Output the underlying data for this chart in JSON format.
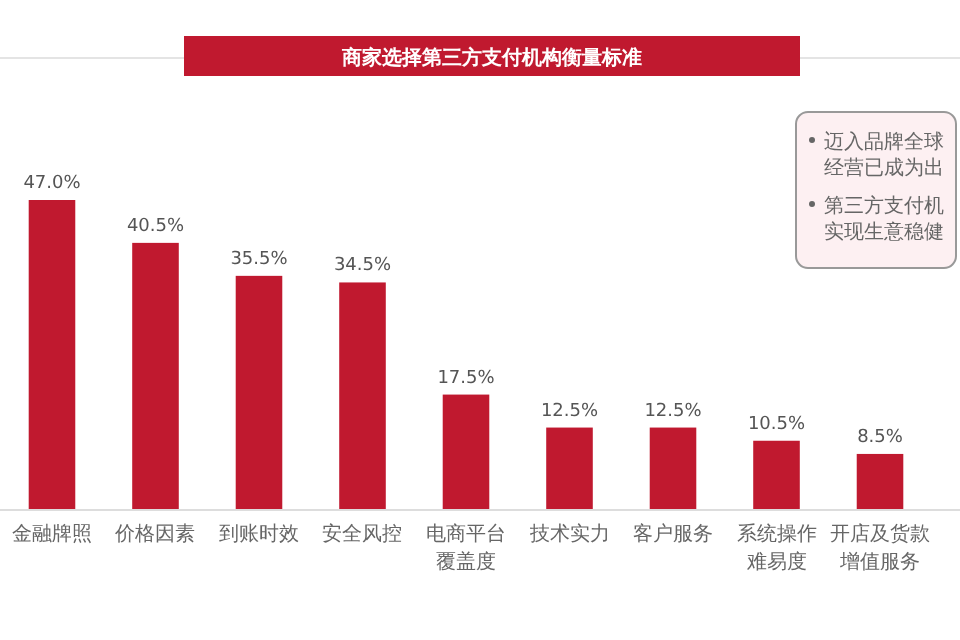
{
  "chart_data": {
    "type": "bar",
    "title": "商家选择第三方支付机构衡量标准",
    "categories": [
      "金融牌照",
      "价格因素",
      "到账时效",
      "安全风控",
      "电商平台覆盖度",
      "技术实力",
      "客户服务",
      "系统操作难易度",
      "开店及货款增值服务"
    ],
    "values": [
      47.0,
      40.5,
      35.5,
      34.5,
      17.5,
      12.5,
      12.5,
      10.5,
      8.5
    ],
    "value_labels": [
      "47.0%",
      "40.5%",
      "35.5%",
      "34.5%",
      "17.5%",
      "12.5%",
      "12.5%",
      "10.5%",
      "8.5%"
    ],
    "color": "#c0192f",
    "annotations": [
      "迈入品牌全球经营已成为出",
      "第三方支付机实现生意稳健"
    ]
  }
}
